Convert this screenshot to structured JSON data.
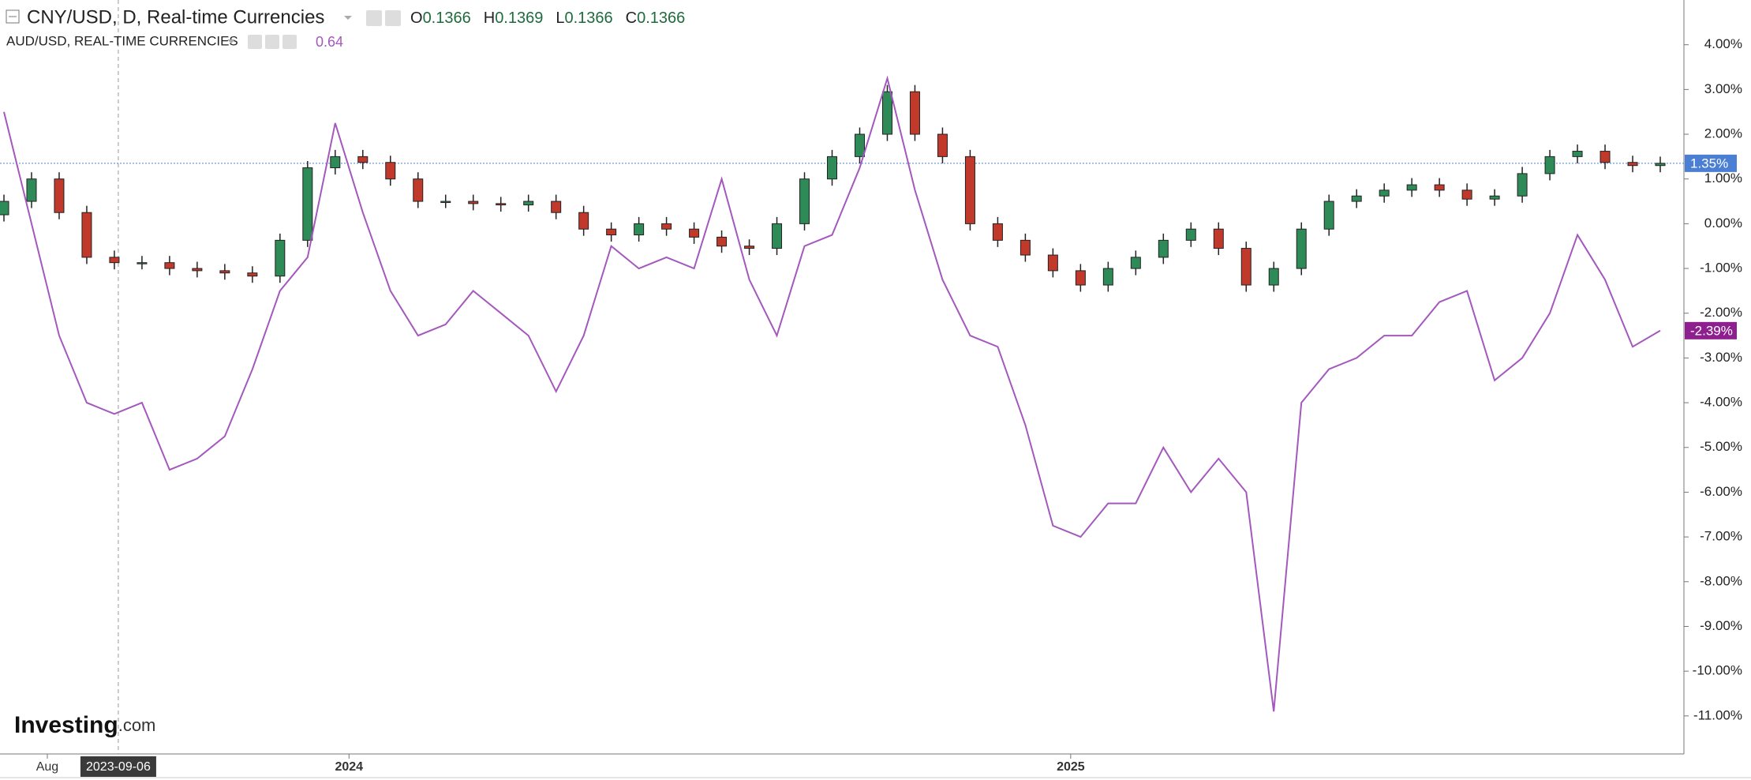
{
  "chart_data": {
    "type": "candlestick",
    "title": "CNY/USD, D, Real-time Currencies",
    "ohlc_legend": [
      {
        "label": "O",
        "value": 0.1366
      },
      {
        "label": "H",
        "value": 0.1369
      },
      {
        "label": "L",
        "value": 0.1366
      },
      {
        "label": "C",
        "value": 0.1366
      }
    ],
    "x": [
      "2023-07-10",
      "2023-07-24",
      "2023-08-07",
      "2023-08-21",
      "2023-09-04",
      "2023-09-18",
      "2023-10-02",
      "2023-10-16",
      "2023-10-30",
      "2023-11-13",
      "2023-11-27",
      "2023-12-11",
      "2023-12-25",
      "2024-01-08",
      "2024-01-22",
      "2024-02-05",
      "2024-02-19",
      "2024-03-04",
      "2024-03-18",
      "2024-04-01",
      "2024-04-15",
      "2024-04-29",
      "2024-05-13",
      "2024-05-27",
      "2024-06-10",
      "2024-06-24",
      "2024-07-08",
      "2024-07-22",
      "2024-08-05",
      "2024-08-19",
      "2024-09-02",
      "2024-09-16",
      "2024-09-30",
      "2024-10-14",
      "2024-10-28",
      "2024-11-11",
      "2024-11-25",
      "2024-12-09",
      "2024-12-23",
      "2025-01-06",
      "2025-01-20",
      "2025-02-03",
      "2025-02-17",
      "2025-03-03",
      "2025-03-17",
      "2025-03-31",
      "2025-04-14",
      "2025-04-28",
      "2025-05-12",
      "2025-05-26",
      "2025-06-09",
      "2025-06-23",
      "2025-07-07",
      "2025-07-21",
      "2025-08-04",
      "2025-08-18",
      "2025-09-01",
      "2025-09-15",
      "2025-09-29",
      "2025-10-13",
      "2025-10-27"
    ],
    "xlim": [
      "2023-07-08",
      "2025-11-08"
    ],
    "xticks": [
      {
        "value": "2023-08-01",
        "label": "Aug"
      },
      {
        "value": "2024-01-01",
        "label": "2024"
      },
      {
        "value": "2025-01-01",
        "label": "2025"
      }
    ],
    "crosshair": "2023-09-06",
    "ylim": [
      -11.85,
      5.0
    ],
    "yticks": [
      {
        "value": 4,
        "label": "4.00%"
      },
      {
        "value": 3,
        "label": "3.00%"
      },
      {
        "value": 2,
        "label": "2.00%"
      },
      {
        "value": 1,
        "label": "1.00%"
      },
      {
        "value": 0,
        "label": "0.00%"
      },
      {
        "value": -1,
        "label": "-1.00%"
      },
      {
        "value": -2,
        "label": "-2.00%"
      },
      {
        "value": -3,
        "label": "-3.00%"
      },
      {
        "value": -4,
        "label": "-4.00%"
      },
      {
        "value": -5,
        "label": "-5.00%"
      },
      {
        "value": -6,
        "label": "-6.00%"
      },
      {
        "value": -7,
        "label": "-7.00%"
      },
      {
        "value": -8,
        "label": "-8.00%"
      },
      {
        "value": -9,
        "label": "-9.00%"
      },
      {
        "value": -10,
        "label": "-10.00%"
      },
      {
        "value": -11,
        "label": "-11.00%"
      }
    ],
    "candles": {
      "up_color": "#2e8b57",
      "down_color": "#c0392b",
      "last_color": "#4a7fd4",
      "open": [
        0.2,
        0.5,
        1.0,
        0.25,
        -0.75,
        -0.87,
        -0.87,
        -1.0,
        -1.05,
        -1.1,
        -1.17,
        -0.37,
        1.25,
        1.5,
        1.37,
        1.0,
        0.5,
        0.5,
        0.45,
        0.42,
        0.5,
        0.25,
        -0.12,
        -0.25,
        0,
        -0.12,
        -0.3,
        -0.5,
        -0.55,
        0,
        1.0,
        1.5,
        2.0,
        2.95,
        2.0,
        1.5,
        0,
        -0.37,
        -0.7,
        -1.05,
        -1.37,
        -1.0,
        -0.75,
        -0.37,
        -0.12,
        -0.55,
        -1.37,
        -1.0,
        -0.12,
        0.5,
        0.62,
        0.75,
        0.87,
        0.75,
        0.55,
        0.62,
        1.12,
        1.5,
        1.62,
        1.37,
        1.3
      ],
      "high": [
        0.65,
        1.15,
        1.15,
        0.4,
        -0.6,
        -0.72,
        -0.72,
        -0.85,
        -0.9,
        -0.95,
        -0.22,
        1.4,
        1.65,
        1.65,
        1.52,
        1.15,
        0.65,
        0.65,
        0.6,
        0.65,
        0.65,
        0.4,
        0.03,
        0.15,
        0.15,
        0.03,
        -0.15,
        -0.35,
        0.15,
        1.15,
        1.65,
        2.15,
        3.1,
        3.1,
        2.15,
        1.65,
        0.15,
        -0.22,
        -0.55,
        -0.9,
        -0.85,
        -0.6,
        -0.22,
        0.03,
        0.03,
        -0.4,
        -0.85,
        0.03,
        0.65,
        0.77,
        0.9,
        1.02,
        1.02,
        0.9,
        0.77,
        1.27,
        1.65,
        1.77,
        1.77,
        1.52,
        1.5
      ],
      "low": [
        0.05,
        0.35,
        0.1,
        -0.9,
        -1.02,
        -1.02,
        -1.15,
        -1.2,
        -1.25,
        -1.32,
        -1.32,
        -0.52,
        1.1,
        1.22,
        0.85,
        0.35,
        0.35,
        0.3,
        0.27,
        0.27,
        0.1,
        -0.27,
        -0.4,
        -0.4,
        -0.27,
        -0.45,
        -0.65,
        -0.7,
        -0.7,
        -0.15,
        0.85,
        1.35,
        1.85,
        1.85,
        1.35,
        -0.15,
        -0.52,
        -0.85,
        -1.2,
        -1.52,
        -1.52,
        -1.15,
        -0.9,
        -0.52,
        -0.7,
        -1.52,
        -1.52,
        -1.15,
        -0.27,
        0.35,
        0.47,
        0.6,
        0.6,
        0.4,
        0.4,
        0.47,
        0.97,
        1.35,
        1.22,
        1.15,
        1.15
      ],
      "close": [
        0.5,
        1.0,
        0.25,
        -0.75,
        -0.87,
        -0.87,
        -1.0,
        -1.05,
        -1.1,
        -1.17,
        -0.37,
        1.25,
        1.5,
        1.37,
        1.0,
        0.5,
        0.5,
        0.45,
        0.42,
        0.5,
        0.25,
        -0.12,
        -0.25,
        0,
        -0.12,
        -0.3,
        -0.5,
        -0.55,
        0,
        1.0,
        1.5,
        2.0,
        2.95,
        2.0,
        1.5,
        0,
        -0.37,
        -0.7,
        -1.05,
        -1.37,
        -1.0,
        -0.75,
        -0.37,
        -0.12,
        -0.55,
        -1.37,
        -1.0,
        -0.12,
        0.5,
        0.62,
        0.75,
        0.87,
        0.75,
        0.55,
        0.62,
        1.12,
        1.5,
        1.62,
        1.37,
        1.3,
        1.35
      ],
      "last_label": {
        "value": 1.35,
        "label": "1.35%"
      }
    },
    "series": [
      {
        "name": "AUD/USD, REAL-TIME CURRENCIES",
        "legend_value": 0.64,
        "color": "#a458bd",
        "values": [
          2.5,
          0,
          -2.5,
          -4.0,
          -4.25,
          -4.0,
          -5.5,
          -5.25,
          -4.75,
          -3.25,
          -1.5,
          -0.75,
          2.25,
          0.25,
          -1.5,
          -2.5,
          -2.25,
          -1.5,
          -2.0,
          -2.5,
          -3.75,
          -2.5,
          -0.5,
          -1.0,
          -0.75,
          -1.0,
          1.0,
          -1.25,
          -2.5,
          -0.5,
          -0.25,
          1.25,
          3.25,
          0.75,
          -1.25,
          -2.5,
          -2.75,
          -4.5,
          -6.75,
          -7.0,
          -6.25,
          -6.25,
          -5.0,
          -6.0,
          -5.25,
          -6.0,
          -10.9,
          -4.0,
          -3.25,
          -3.0,
          -2.5,
          -2.5,
          -1.75,
          -1.5,
          -3.5,
          -3.0,
          -2.0,
          -0.25,
          -1.25,
          -2.75,
          -2.39
        ],
        "last_label": {
          "value": -2.39,
          "label": "-2.39%"
        }
      }
    ],
    "watermark": {
      "brand": "Investing",
      "suffix": ".com"
    }
  }
}
